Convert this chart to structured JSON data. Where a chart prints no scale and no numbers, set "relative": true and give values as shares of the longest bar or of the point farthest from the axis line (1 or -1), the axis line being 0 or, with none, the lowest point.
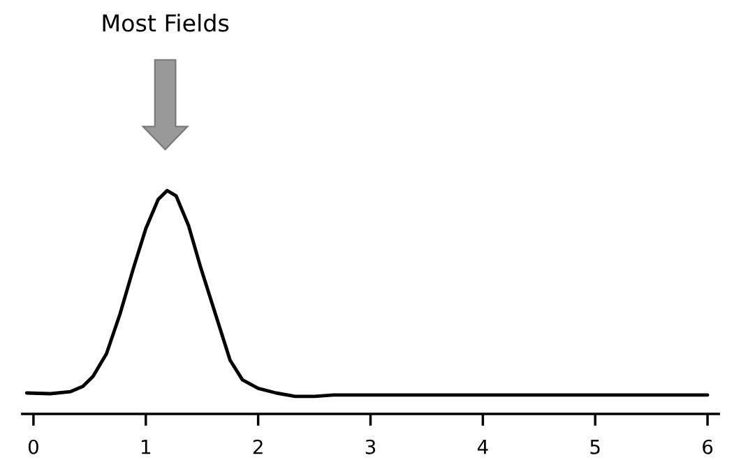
{
  "chart_data": {
    "type": "line",
    "relative": true,
    "color": "#000000",
    "x": [
      -0.06,
      0.15,
      0.33,
      0.44,
      0.53,
      0.65,
      0.77,
      0.89,
      1.0,
      1.11,
      1.19,
      1.27,
      1.38,
      1.49,
      1.62,
      1.75,
      1.86,
      2.0,
      2.16,
      2.33,
      2.5,
      2.67,
      3.19,
      4.08,
      5.07,
      6.0
    ],
    "values": [
      0.094,
      0.091,
      0.1,
      0.124,
      0.168,
      0.27,
      0.447,
      0.653,
      0.83,
      0.96,
      1.0,
      0.976,
      0.844,
      0.653,
      0.447,
      0.241,
      0.153,
      0.115,
      0.094,
      0.079,
      0.079,
      0.085,
      0.085,
      0.085,
      0.085,
      0.085
    ],
    "xlim": [
      -0.1,
      6.1
    ],
    "xticks": [
      0,
      1,
      2,
      3,
      4,
      5,
      6
    ],
    "annotations": [
      "Most Fields"
    ],
    "grid": false,
    "legend": false,
    "marker": "none",
    "line_style": "solid"
  }
}
